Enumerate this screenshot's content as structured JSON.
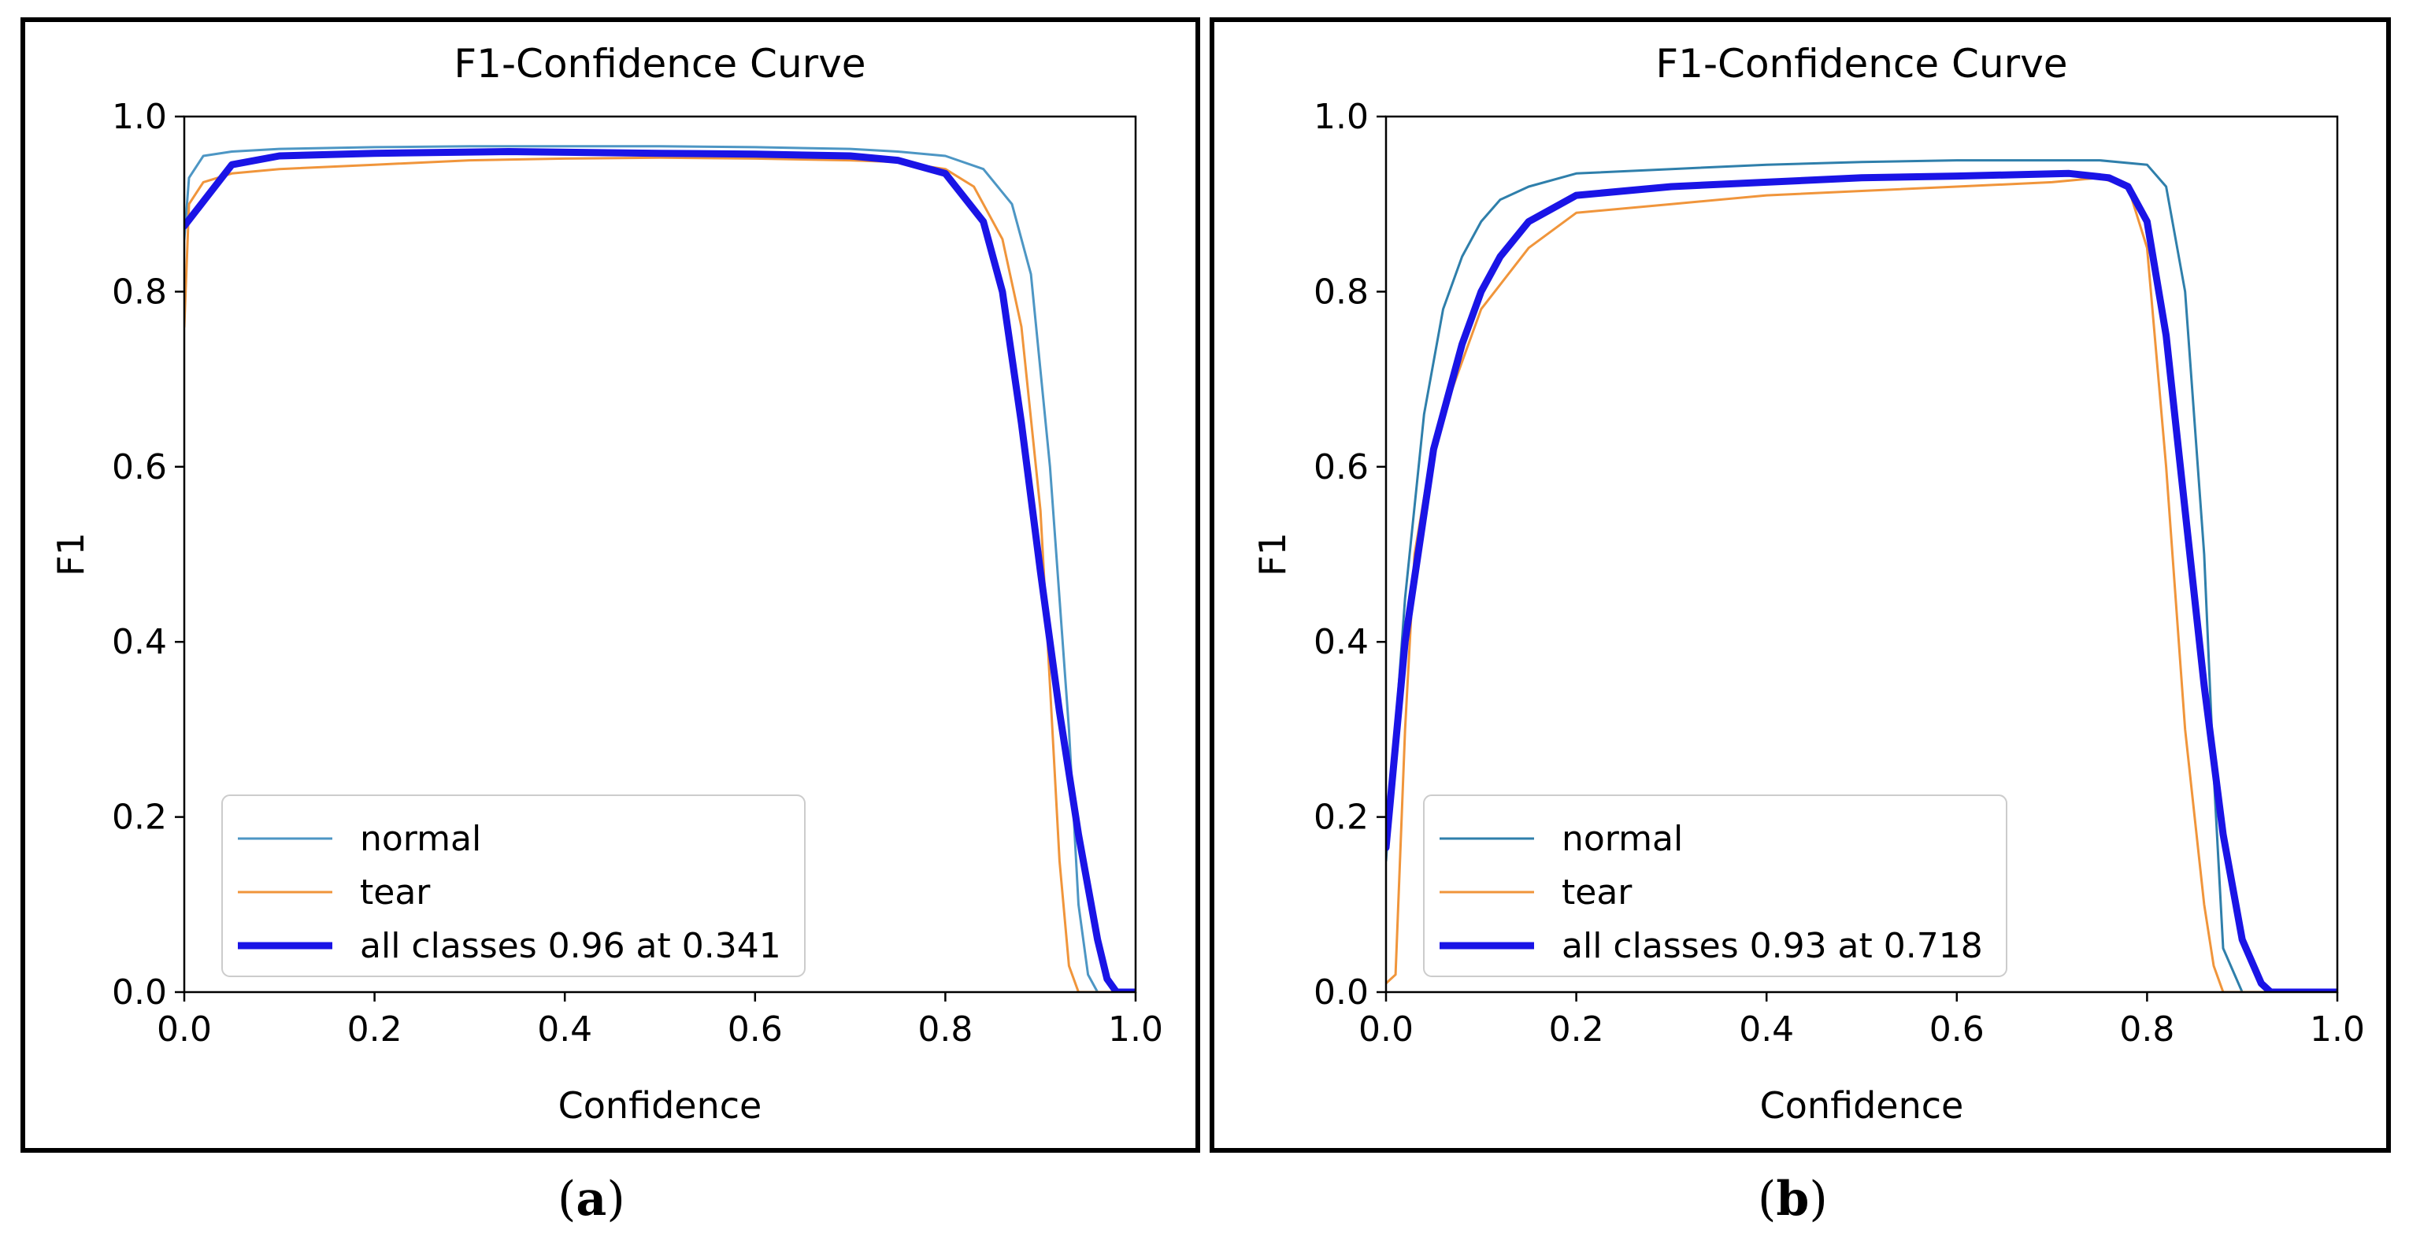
{
  "captions": {
    "a": "a",
    "b": "b"
  },
  "chart_data": [
    {
      "panel": "a",
      "type": "line",
      "title": "F1-Confidence Curve",
      "xlabel": "Confidence",
      "ylabel": "F1",
      "xlim": [
        0,
        1
      ],
      "ylim": [
        0,
        1
      ],
      "xticks": [
        "0.0",
        "0.2",
        "0.4",
        "0.6",
        "0.8",
        "1.0"
      ],
      "yticks": [
        "0.0",
        "0.2",
        "0.4",
        "0.6",
        "0.8",
        "1.0"
      ],
      "legend_position": "lower-left",
      "series": [
        {
          "name": "normal",
          "color": "#4d96c4",
          "width": 3,
          "x": [
            0.0,
            0.005,
            0.02,
            0.05,
            0.1,
            0.2,
            0.3,
            0.4,
            0.5,
            0.6,
            0.7,
            0.75,
            0.8,
            0.84,
            0.87,
            0.89,
            0.91,
            0.93,
            0.94,
            0.95,
            0.96,
            1.0
          ],
          "y": [
            0.86,
            0.93,
            0.955,
            0.96,
            0.963,
            0.965,
            0.966,
            0.966,
            0.966,
            0.965,
            0.963,
            0.96,
            0.955,
            0.94,
            0.9,
            0.82,
            0.6,
            0.3,
            0.1,
            0.02,
            0.0,
            0.0
          ]
        },
        {
          "name": "tear",
          "color": "#f0953b",
          "width": 3,
          "x": [
            0.0,
            0.005,
            0.02,
            0.05,
            0.1,
            0.2,
            0.3,
            0.4,
            0.5,
            0.6,
            0.7,
            0.75,
            0.8,
            0.83,
            0.86,
            0.88,
            0.9,
            0.91,
            0.92,
            0.93,
            0.94,
            1.0
          ],
          "y": [
            0.76,
            0.9,
            0.925,
            0.935,
            0.94,
            0.945,
            0.95,
            0.952,
            0.953,
            0.952,
            0.95,
            0.948,
            0.94,
            0.92,
            0.86,
            0.76,
            0.55,
            0.35,
            0.15,
            0.03,
            0.0,
            0.0
          ]
        },
        {
          "name": "all classes 0.96 at 0.341",
          "color": "#1a14e6",
          "width": 9,
          "x": [
            0.0,
            0.05,
            0.1,
            0.2,
            0.341,
            0.5,
            0.6,
            0.7,
            0.75,
            0.8,
            0.84,
            0.86,
            0.88,
            0.9,
            0.92,
            0.94,
            0.96,
            0.97,
            0.98,
            1.0
          ],
          "y": [
            0.875,
            0.945,
            0.955,
            0.958,
            0.96,
            0.958,
            0.957,
            0.955,
            0.95,
            0.935,
            0.88,
            0.8,
            0.65,
            0.48,
            0.32,
            0.18,
            0.06,
            0.015,
            0.0,
            0.0
          ]
        }
      ]
    },
    {
      "panel": "b",
      "type": "line",
      "title": "F1-Confidence Curve",
      "xlabel": "Confidence",
      "ylabel": "F1",
      "xlim": [
        0,
        1
      ],
      "ylim": [
        0,
        1
      ],
      "xticks": [
        "0.0",
        "0.2",
        "0.4",
        "0.6",
        "0.8",
        "1.0"
      ],
      "yticks": [
        "0.0",
        "0.2",
        "0.4",
        "0.6",
        "0.8",
        "1.0"
      ],
      "legend_position": "lower-left",
      "series": [
        {
          "name": "normal",
          "color": "#2f7fab",
          "width": 3,
          "x": [
            0.0,
            0.01,
            0.02,
            0.04,
            0.06,
            0.08,
            0.1,
            0.12,
            0.15,
            0.2,
            0.3,
            0.4,
            0.5,
            0.6,
            0.7,
            0.75,
            0.8,
            0.82,
            0.84,
            0.86,
            0.87,
            0.88,
            0.9,
            1.0
          ],
          "y": [
            0.15,
            0.3,
            0.45,
            0.66,
            0.78,
            0.84,
            0.88,
            0.905,
            0.92,
            0.935,
            0.94,
            0.945,
            0.948,
            0.95,
            0.95,
            0.95,
            0.945,
            0.92,
            0.8,
            0.5,
            0.25,
            0.05,
            0.0,
            0.0
          ]
        },
        {
          "name": "tear",
          "color": "#f0953b",
          "width": 3,
          "x": [
            0.0,
            0.01,
            0.02,
            0.03,
            0.05,
            0.08,
            0.1,
            0.15,
            0.2,
            0.3,
            0.4,
            0.5,
            0.6,
            0.7,
            0.75,
            0.78,
            0.8,
            0.82,
            0.84,
            0.86,
            0.87,
            0.88,
            1.0
          ],
          "y": [
            0.01,
            0.02,
            0.3,
            0.5,
            0.63,
            0.72,
            0.78,
            0.85,
            0.89,
            0.9,
            0.91,
            0.915,
            0.92,
            0.925,
            0.93,
            0.92,
            0.85,
            0.6,
            0.3,
            0.1,
            0.03,
            0.0,
            0.0
          ]
        },
        {
          "name": "all classes 0.93 at 0.718",
          "color": "#1a14e6",
          "width": 9,
          "x": [
            0.0,
            0.02,
            0.05,
            0.08,
            0.1,
            0.12,
            0.15,
            0.2,
            0.3,
            0.4,
            0.5,
            0.6,
            0.718,
            0.76,
            0.78,
            0.8,
            0.82,
            0.84,
            0.86,
            0.88,
            0.9,
            0.92,
            0.93,
            1.0
          ],
          "y": [
            0.165,
            0.4,
            0.62,
            0.74,
            0.8,
            0.84,
            0.88,
            0.91,
            0.92,
            0.925,
            0.93,
            0.932,
            0.935,
            0.93,
            0.92,
            0.88,
            0.75,
            0.55,
            0.35,
            0.18,
            0.06,
            0.01,
            0.0,
            0.0
          ]
        }
      ]
    }
  ]
}
